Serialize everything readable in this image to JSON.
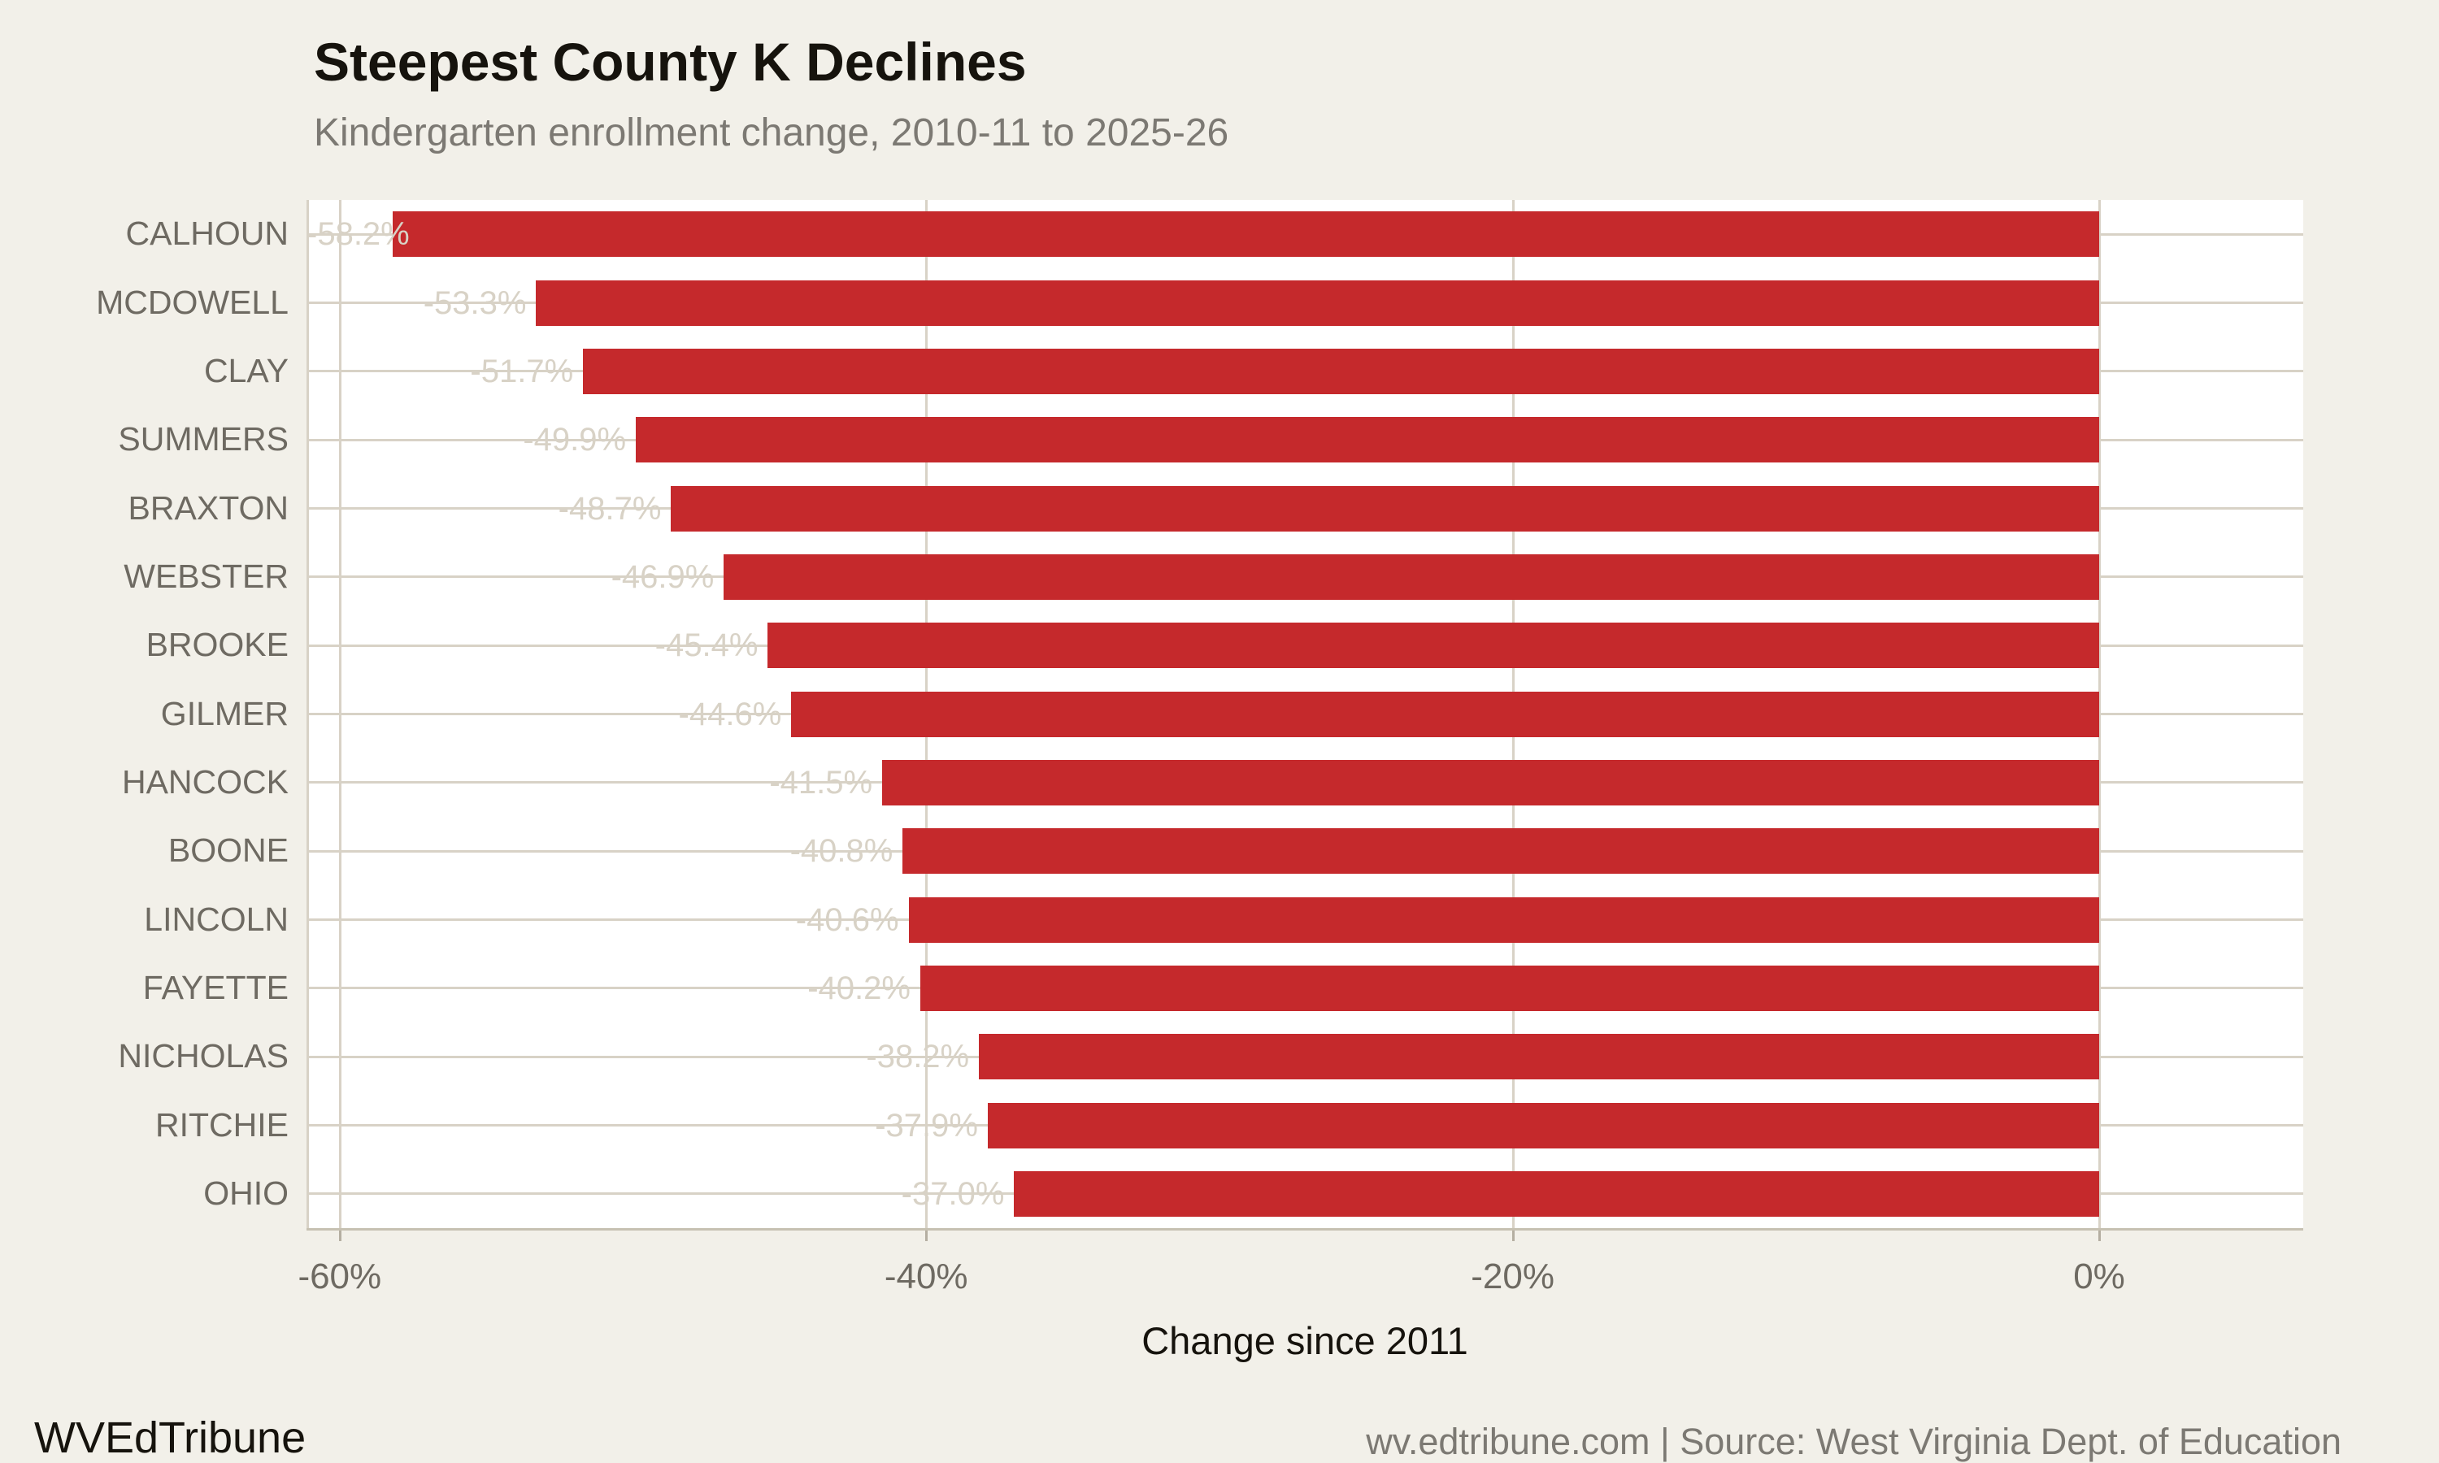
{
  "title": "Steepest County K Declines",
  "subtitle": "Kindergarten enrollment change, 2010-11 to 2025-26",
  "footer": {
    "brand": "WVEdTribune",
    "source": "wv.edtribune.com | Source: West Virginia Dept. of Education"
  },
  "chart_data": {
    "type": "bar",
    "orientation": "horizontal",
    "title": "Steepest County K Declines",
    "subtitle": "Kindergarten enrollment change, 2010-11 to 2025-26",
    "xlabel": "Change since 2011",
    "ylabel": "",
    "categories": [
      "CALHOUN",
      "MCDOWELL",
      "CLAY",
      "SUMMERS",
      "BRAXTON",
      "WEBSTER",
      "BROOKE",
      "GILMER",
      "HANCOCK",
      "BOONE",
      "LINCOLN",
      "FAYETTE",
      "NICHOLAS",
      "RITCHIE",
      "OHIO"
    ],
    "values": [
      -58.2,
      -53.3,
      -51.7,
      -49.9,
      -48.7,
      -46.9,
      -45.4,
      -44.6,
      -41.5,
      -40.8,
      -40.6,
      -40.2,
      -38.2,
      -37.9,
      -37.0
    ],
    "bar_value_labels": [
      "-58.2%",
      "-53.3%",
      "-51.7%",
      "-49.9%",
      "-48.7%",
      "-46.9%",
      "-45.4%",
      "-44.6%",
      "-41.5%",
      "-40.8%",
      "-40.6%",
      "-40.2%",
      "-38.2%",
      "-37.9%",
      "-37.0%"
    ],
    "x_ticks": [
      {
        "value": -60,
        "label": "-60%"
      },
      {
        "value": -40,
        "label": "-40%"
      },
      {
        "value": -20,
        "label": "-20%"
      },
      {
        "value": 0,
        "label": "0%"
      }
    ],
    "xlim": [
      -61.1,
      7.0
    ],
    "grid": "vertical-ticks-and-row-center-lines",
    "legend": "none",
    "colors": {
      "bar": "#c5292c",
      "background": "#f2f0e9",
      "plot_background": "#ffffff",
      "gridline": "#d8d2c6",
      "ghost_value_label": "#d8d2c6",
      "axis_text": "#6e6a62",
      "title_text": "#16130d",
      "subtitle_text": "#7c7973"
    }
  }
}
